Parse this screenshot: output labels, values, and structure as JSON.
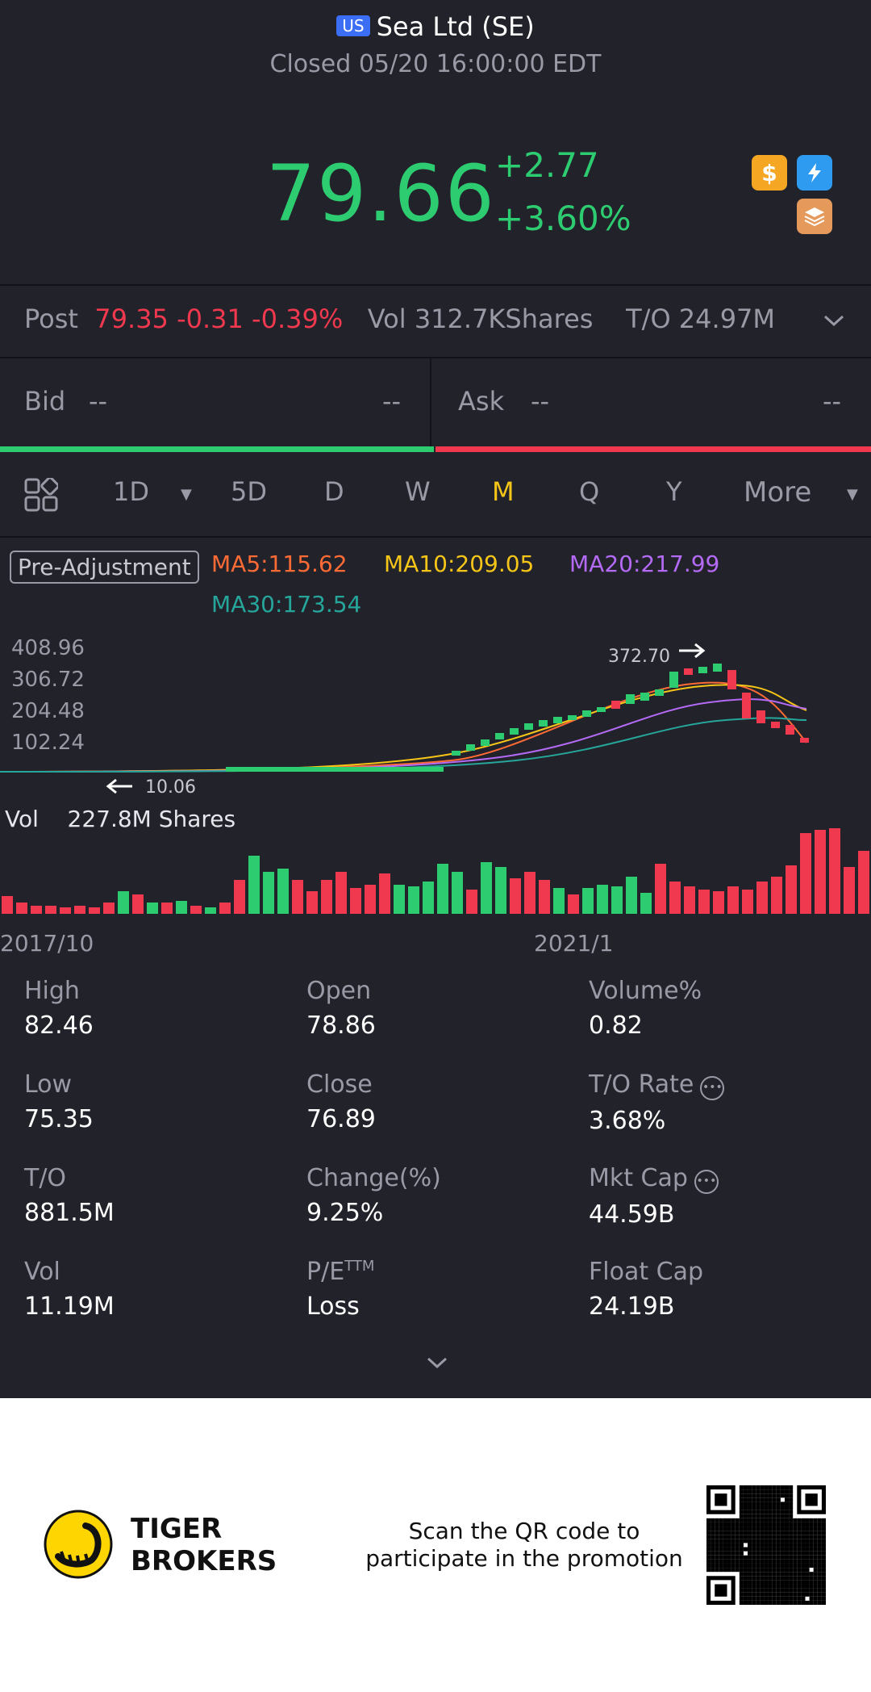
{
  "header": {
    "market_badge": "US",
    "title": "Sea Ltd (SE)",
    "status": "Closed 05/20 16:00:00 EDT"
  },
  "quote": {
    "price": "79.66",
    "change": "+2.77",
    "change_pct": "+3.60%",
    "icons": [
      "dollar-icon",
      "flash-icon",
      "layers-icon"
    ]
  },
  "post": {
    "label": "Post",
    "price": "79.35",
    "change": "-0.31",
    "change_pct": "-0.39%",
    "vol": "Vol 312.7KShares",
    "turnover": "T/O 24.97M"
  },
  "bidask": {
    "bid_label": "Bid",
    "bid_price": "--",
    "bid_size": "--",
    "ask_label": "Ask",
    "ask_price": "--",
    "ask_size": "--"
  },
  "tabs": [
    "1D",
    "5D",
    "D",
    "W",
    "M",
    "Q",
    "Y",
    "More"
  ],
  "active_tab": "M",
  "indicators": {
    "adjustment": "Pre-Adjustment",
    "ma5": "MA5:115.62",
    "ma10": "MA10:209.05",
    "ma20": "MA20:217.99",
    "ma30": "MA30:173.54"
  },
  "chart_data": {
    "type": "candlestick",
    "y_ticks": [
      "408.96",
      "306.72",
      "204.48",
      "102.24"
    ],
    "high_marker": "372.70",
    "low_marker": "10.06",
    "x_ticks": [
      "2017/10",
      "2021/1"
    ],
    "volume_label": "Vol",
    "volume_value": "227.8M Shares",
    "colors": {
      "up": "#2ecc71",
      "down": "#f0384e",
      "ma5": "#ff6b35",
      "ma10": "#f5c518",
      "ma20": "#b36af5",
      "ma30": "#26a69a"
    }
  },
  "stats": [
    {
      "label": "High",
      "value": "82.46"
    },
    {
      "label": "Open",
      "value": "78.86"
    },
    {
      "label": "Volume%",
      "value": "0.82"
    },
    {
      "label": "Low",
      "value": "75.35"
    },
    {
      "label": "Close",
      "value": "76.89"
    },
    {
      "label": "T/O Rate",
      "value": "3.68%"
    },
    {
      "label": "T/O",
      "value": "881.5M"
    },
    {
      "label": "Change(%)",
      "value": "9.25%"
    },
    {
      "label": "Mkt Cap",
      "value": "44.59B"
    },
    {
      "label": "Vol",
      "value": "11.19M"
    },
    {
      "label": "P/E",
      "value": "Loss"
    },
    {
      "label": "Float Cap",
      "value": "24.19B"
    }
  ],
  "pe_superscript": "TTM",
  "footer": {
    "brand_line1": "TIGER",
    "brand_line2": "BROKERS",
    "promo_line1": "Scan the QR code to",
    "promo_line2": "participate in the promotion"
  }
}
